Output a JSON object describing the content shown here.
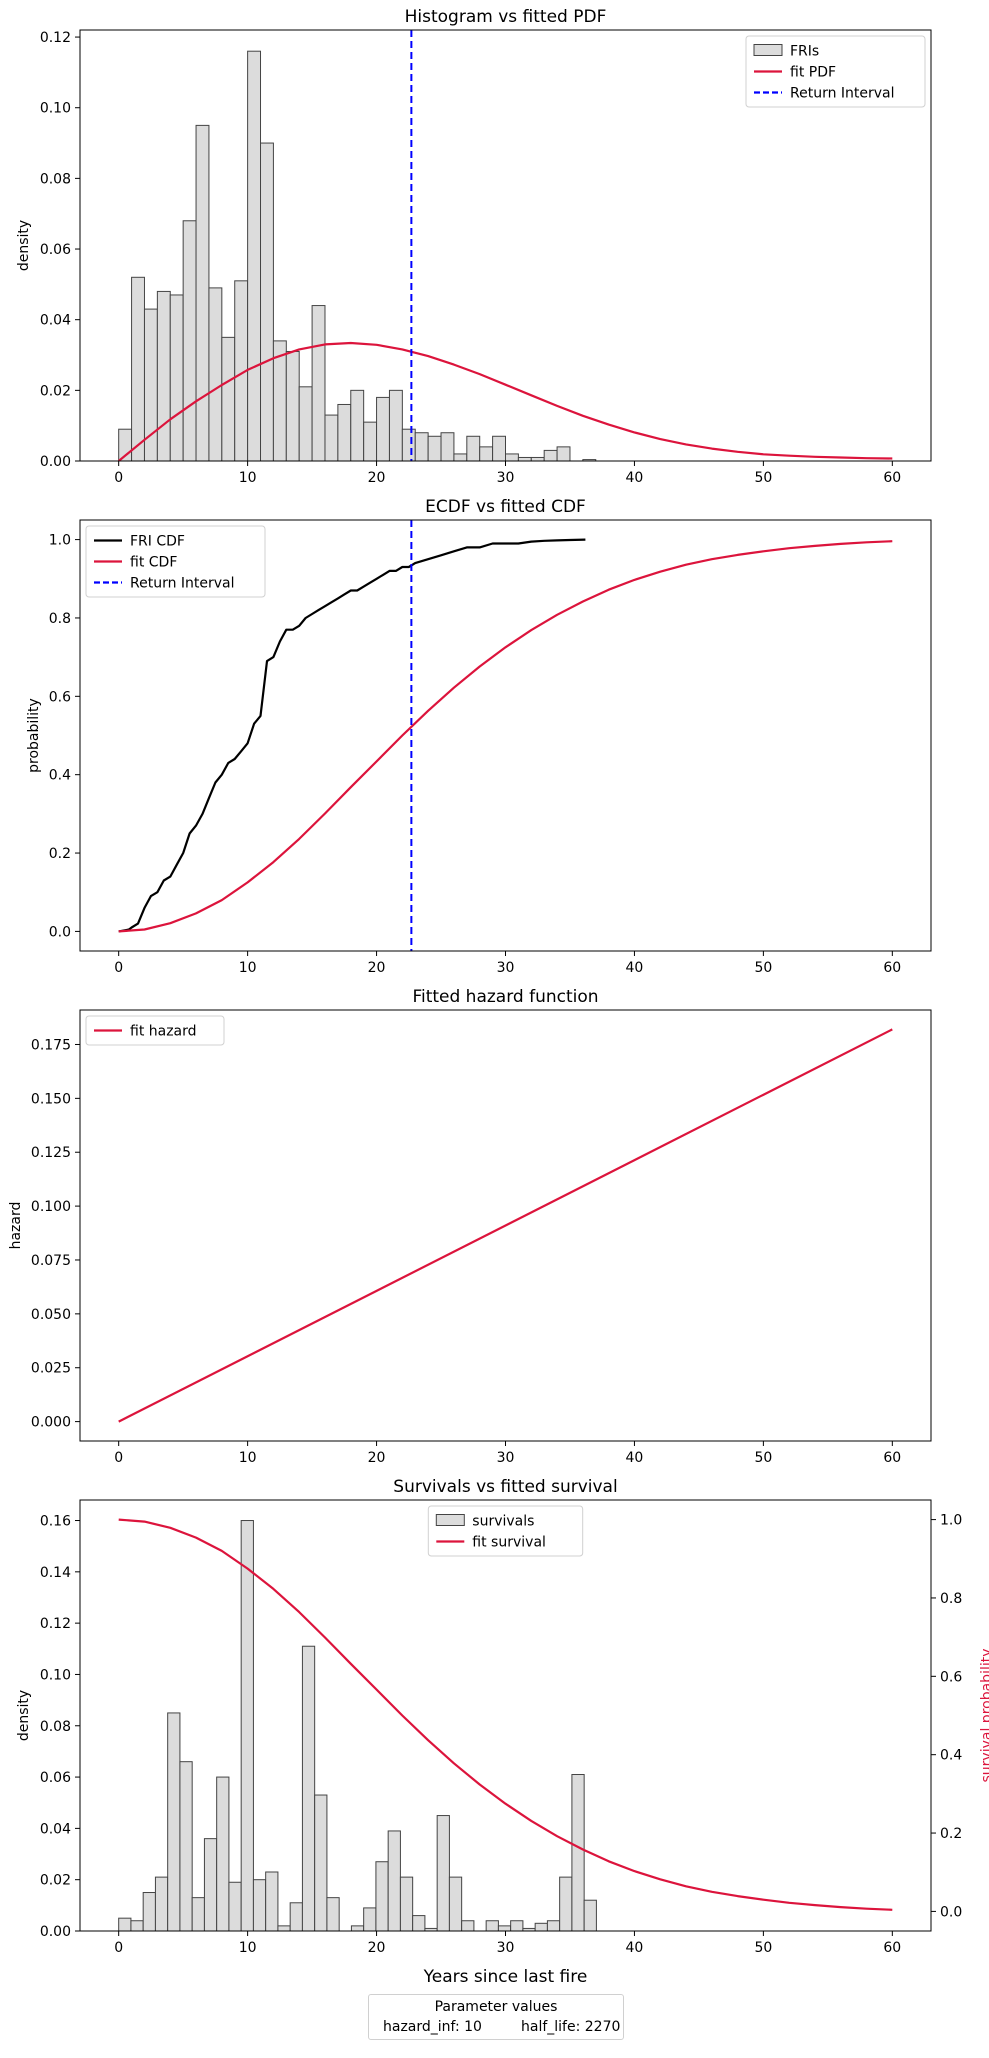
{
  "colors": {
    "fit": "#dc143c",
    "return_interval": "#0000ff",
    "hist_fill": "#dcdcdc",
    "hist_edge": "#444444",
    "ecdf": "#000000"
  },
  "parameters": {
    "title": "Parameter values",
    "hazard_inf": "hazard_inf: 10",
    "half_life": "half_life: 2270"
  },
  "chart_data": [
    {
      "type": "bar",
      "title": "Histogram vs fitted PDF",
      "xlabel": "",
      "ylabel": "density",
      "xlim": [
        -3,
        63
      ],
      "ylim": [
        0,
        0.122
      ],
      "xticks": [
        0,
        10,
        20,
        30,
        40,
        50,
        60
      ],
      "yticks": [
        "0.00",
        "0.02",
        "0.04",
        "0.06",
        "0.08",
        "0.10",
        "0.12"
      ],
      "legend_position": "top-right",
      "legend": [
        "FRIs",
        "fit PDF",
        "Return Interval"
      ],
      "histogram": {
        "name": "FRIs",
        "bin_width": 1,
        "bin_start": 0,
        "values": [
          0.009,
          0.052,
          0.043,
          0.048,
          0.047,
          0.068,
          0.095,
          0.049,
          0.035,
          0.051,
          0.116,
          0.09,
          0.034,
          0.031,
          0.021,
          0.044,
          0.013,
          0.016,
          0.02,
          0.011,
          0.018,
          0.02,
          0.009,
          0.008,
          0.007,
          0.008,
          0.002,
          0.007,
          0.004,
          0.007,
          0.002,
          0.001,
          0.001,
          0.003,
          0.004,
          0.0,
          0.0004
        ]
      },
      "fit_pdf": {
        "name": "fit PDF",
        "x": [
          0,
          2,
          4,
          6,
          8,
          10,
          12,
          14,
          16,
          18,
          20,
          22,
          24,
          26,
          28,
          30,
          32,
          34,
          36,
          38,
          40,
          42,
          44,
          46,
          48,
          50,
          52,
          54,
          56,
          58,
          60
        ],
        "y": [
          0,
          0.006,
          0.0118,
          0.0169,
          0.0215,
          0.0258,
          0.0291,
          0.0316,
          0.033,
          0.0334,
          0.0329,
          0.0316,
          0.0297,
          0.0273,
          0.0246,
          0.0216,
          0.0186,
          0.0156,
          0.0128,
          0.0103,
          0.0081,
          0.0062,
          0.0047,
          0.0035,
          0.0026,
          0.0019,
          0.0015,
          0.0012,
          0.001,
          0.0008,
          0.0007
        ]
      },
      "return_interval": {
        "name": "Return Interval",
        "x": 22.7
      }
    },
    {
      "type": "line",
      "title": "ECDF vs fitted CDF",
      "xlabel": "",
      "ylabel": "probability",
      "xlim": [
        -3,
        63
      ],
      "ylim": [
        -0.05,
        1.05
      ],
      "xticks": [
        0,
        10,
        20,
        30,
        40,
        50,
        60
      ],
      "yticks": [
        "0.0",
        "0.2",
        "0.4",
        "0.6",
        "0.8",
        "1.0"
      ],
      "legend_position": "top-left",
      "legend": [
        "FRI CDF",
        "fit CDF",
        "Return Interval"
      ],
      "ecdf": {
        "name": "FRI CDF",
        "x": [
          0,
          0.8,
          1,
          1.5,
          2,
          2.5,
          3,
          3.5,
          4,
          4.5,
          5,
          5.5,
          6,
          6.5,
          7,
          7.5,
          8,
          8.5,
          9,
          9.5,
          10,
          10.5,
          11,
          11.5,
          12,
          12.5,
          13,
          13.5,
          14,
          14.5,
          15,
          15.5,
          16,
          16.5,
          17,
          17.5,
          18,
          18.5,
          19,
          19.5,
          20,
          20.5,
          21,
          21.5,
          22,
          22.5,
          23,
          24,
          25,
          26,
          27,
          28,
          29,
          30,
          31,
          32,
          33,
          34,
          35,
          36.2
        ],
        "y": [
          0,
          0.005,
          0.01,
          0.02,
          0.06,
          0.09,
          0.1,
          0.13,
          0.14,
          0.17,
          0.2,
          0.25,
          0.27,
          0.3,
          0.34,
          0.38,
          0.4,
          0.43,
          0.44,
          0.46,
          0.48,
          0.53,
          0.55,
          0.69,
          0.7,
          0.74,
          0.77,
          0.77,
          0.78,
          0.8,
          0.81,
          0.82,
          0.83,
          0.84,
          0.85,
          0.86,
          0.87,
          0.87,
          0.88,
          0.89,
          0.9,
          0.91,
          0.92,
          0.92,
          0.93,
          0.93,
          0.94,
          0.95,
          0.96,
          0.97,
          0.98,
          0.98,
          0.99,
          0.99,
          0.99,
          0.995,
          0.997,
          0.998,
          0.999,
          1.0
        ]
      },
      "fit_cdf": {
        "name": "fit CDF",
        "x": [
          0,
          2,
          4,
          6,
          8,
          10,
          12,
          14,
          16,
          18,
          20,
          22,
          24,
          26,
          28,
          30,
          32,
          34,
          36,
          38,
          40,
          42,
          44,
          46,
          48,
          50,
          52,
          54,
          56,
          58,
          60
        ],
        "y": [
          0,
          0.005,
          0.021,
          0.046,
          0.08,
          0.125,
          0.177,
          0.236,
          0.301,
          0.368,
          0.434,
          0.5,
          0.563,
          0.622,
          0.676,
          0.725,
          0.769,
          0.808,
          0.842,
          0.872,
          0.897,
          0.918,
          0.936,
          0.95,
          0.961,
          0.97,
          0.978,
          0.984,
          0.989,
          0.993,
          0.996
        ]
      },
      "return_interval": {
        "name": "Return Interval",
        "x": 22.7
      }
    },
    {
      "type": "line",
      "title": "Fitted hazard function",
      "xlabel": "",
      "ylabel": "hazard",
      "xlim": [
        -3,
        63
      ],
      "ylim": [
        -0.009,
        0.191
      ],
      "xticks": [
        0,
        10,
        20,
        30,
        40,
        50,
        60
      ],
      "yticks": [
        "0.000",
        "0.025",
        "0.050",
        "0.075",
        "0.100",
        "0.125",
        "0.150",
        "0.175"
      ],
      "legend_position": "top-left",
      "legend": [
        "fit hazard"
      ],
      "fit_hazard": {
        "name": "fit hazard",
        "x": [
          0,
          60
        ],
        "y": [
          0,
          0.182
        ]
      }
    },
    {
      "type": "bar",
      "title": "Survivals vs fitted survival",
      "xlabel": "Years since last fire",
      "ylabel": "density",
      "ylabel_right": "survival probability",
      "xlim": [
        -3,
        63
      ],
      "ylim": [
        0,
        0.168
      ],
      "ylim_right": [
        -0.05,
        1.05
      ],
      "xticks": [
        0,
        10,
        20,
        30,
        40,
        50,
        60
      ],
      "yticks": [
        "0.00",
        "0.02",
        "0.04",
        "0.06",
        "0.08",
        "0.10",
        "0.12",
        "0.14",
        "0.16"
      ],
      "yticks_right": [
        "0.0",
        "0.2",
        "0.4",
        "0.6",
        "0.8",
        "1.0"
      ],
      "legend_position": "top-center",
      "legend": [
        "survivals",
        "fit survival"
      ],
      "histogram": {
        "name": "survivals",
        "bin_width": 0.95,
        "bin_start": 0,
        "values": [
          0.005,
          0.004,
          0.015,
          0.021,
          0.085,
          0.066,
          0.013,
          0.036,
          0.06,
          0.019,
          0.16,
          0.02,
          0.023,
          0.002,
          0.011,
          0.111,
          0.053,
          0.013,
          0.0,
          0.002,
          0.009,
          0.027,
          0.039,
          0.021,
          0.006,
          0.001,
          0.045,
          0.021,
          0.004,
          0.0,
          0.004,
          0.002,
          0.004,
          0.001,
          0.003,
          0.004,
          0.021,
          0.061,
          0.012
        ]
      },
      "fit_survival": {
        "name": "fit survival",
        "x": [
          0,
          2,
          4,
          6,
          8,
          10,
          12,
          14,
          16,
          18,
          20,
          22,
          24,
          26,
          28,
          30,
          32,
          34,
          36,
          38,
          40,
          42,
          44,
          46,
          48,
          50,
          52,
          54,
          56,
          58,
          60
        ],
        "y": [
          1.0,
          0.995,
          0.979,
          0.954,
          0.92,
          0.875,
          0.823,
          0.764,
          0.699,
          0.632,
          0.566,
          0.5,
          0.437,
          0.378,
          0.324,
          0.275,
          0.231,
          0.192,
          0.158,
          0.128,
          0.103,
          0.082,
          0.064,
          0.05,
          0.039,
          0.03,
          0.022,
          0.016,
          0.011,
          0.007,
          0.004
        ]
      }
    }
  ]
}
